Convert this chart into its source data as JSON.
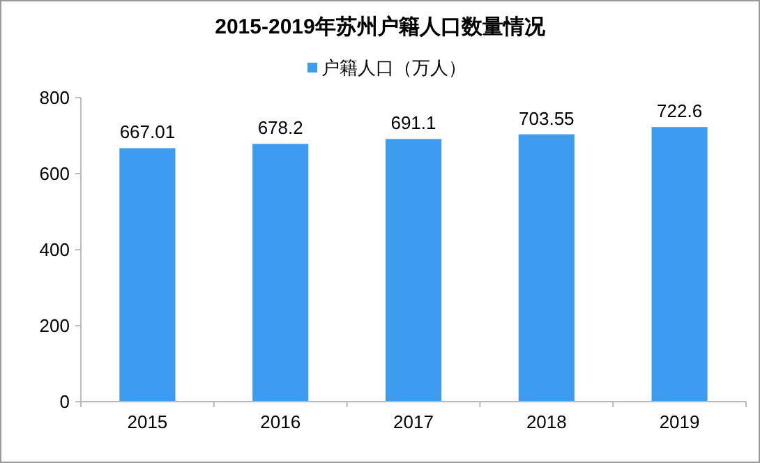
{
  "chart_data": {
    "type": "bar",
    "title": "2015-2019年苏州户籍人口数量情况",
    "categories": [
      "2015",
      "2016",
      "2017",
      "2018",
      "2019"
    ],
    "series": [
      {
        "name": "户籍人口（万人）",
        "color": "#3d9cf0",
        "values": [
          667.01,
          678.2,
          691.1,
          703.55,
          722.6
        ]
      }
    ],
    "ylim": [
      0,
      800
    ],
    "yticks": [
      0,
      200,
      400,
      600,
      800
    ],
    "grid": false,
    "legend": "top",
    "data_labels": true
  }
}
